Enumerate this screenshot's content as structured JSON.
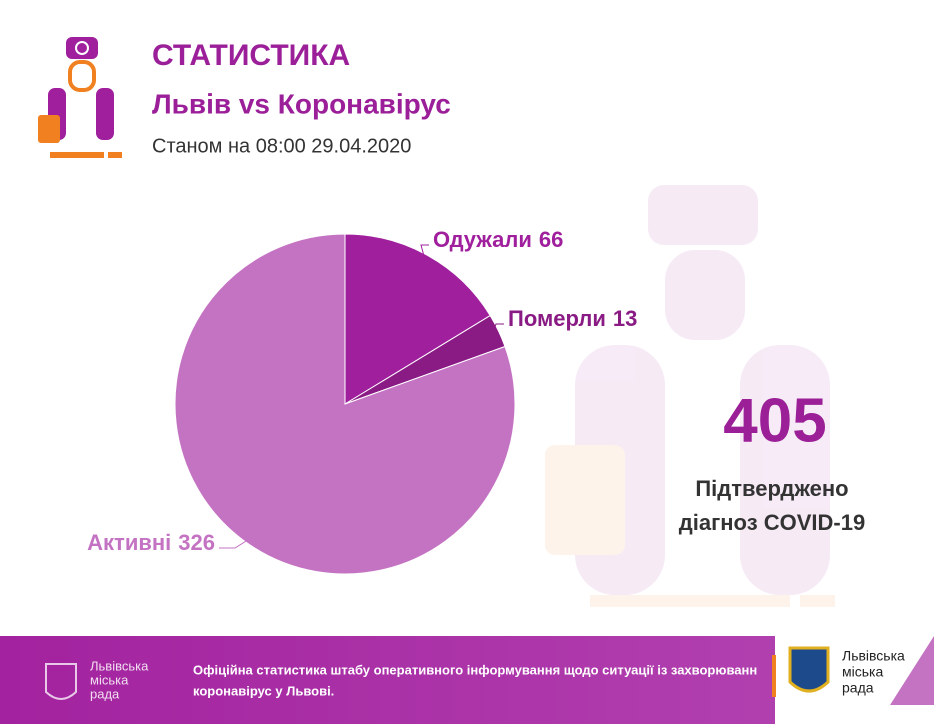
{
  "header": {
    "title": "СТАТИСТИКА",
    "subtitle": "Львів vs Коронавірус",
    "date": "Станом на 08:00 29.04.2020"
  },
  "chart_data": {
    "type": "pie",
    "categories": [
      "Одужали",
      "Померли",
      "Активні"
    ],
    "values": [
      66,
      13,
      326
    ],
    "colors": [
      "#a01f9d",
      "#8a1b84",
      "#c473c3"
    ],
    "label_colors": [
      "#a01f9d",
      "#8a1b84",
      "#c473c3"
    ]
  },
  "summary": {
    "total": 405,
    "caption": [
      "Підтверджено",
      "діагноз COVID-19"
    ]
  },
  "footer": {
    "left_logo": [
      "Львівська",
      "міська",
      "рада"
    ],
    "text": [
      "Офіційна статистика штабу оперативного інформування щодо ситуації із захворюванн",
      "коронавірус у Львові."
    ],
    "right_logo": [
      "Львівська",
      "міська",
      "рада"
    ]
  }
}
